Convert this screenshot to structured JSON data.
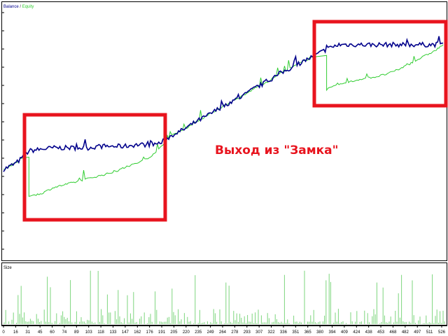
{
  "legend": {
    "balance": "Balance",
    "separator": " / ",
    "equity": "Equity"
  },
  "size_panel": {
    "label": "Size"
  },
  "annotation": {
    "text": "Выход из \"Замка\""
  },
  "colors": {
    "balance": "#00008b",
    "equity": "#32cd32",
    "highlight": "#e8141e",
    "frame": "#000000",
    "grid": "#c0c0c0"
  },
  "chart_data": [
    {
      "type": "line",
      "title": "",
      "legend_placement": "top-left",
      "grid": true,
      "x": [
        0,
        15,
        24,
        31,
        45,
        60,
        74,
        89,
        103,
        118,
        133,
        147,
        162,
        176,
        191,
        205,
        220,
        235,
        249,
        264,
        278,
        293,
        307,
        322,
        336,
        351,
        365,
        380,
        394,
        409,
        424,
        438,
        453,
        468,
        482,
        497,
        511,
        526,
        536
      ],
      "series": [
        {
          "name": "Balance",
          "values": [
            0,
            4,
            8,
            12,
            13,
            14,
            14,
            14,
            14,
            15,
            15,
            15,
            16,
            16,
            17,
            22,
            26,
            31,
            35,
            40,
            44,
            48,
            53,
            57,
            62,
            66,
            70,
            74,
            78,
            81,
            81,
            81,
            81,
            81,
            81,
            81,
            81,
            81,
            82
          ]
        },
        {
          "name": "Equity",
          "values": [
            0,
            4,
            8,
            -17,
            -16,
            -12,
            -10,
            -8,
            -6,
            -4,
            -2,
            1,
            4,
            7,
            14,
            22,
            26,
            31,
            35,
            40,
            44,
            48,
            53,
            57,
            62,
            66,
            70,
            74,
            52,
            55,
            57,
            59,
            60,
            62,
            65,
            69,
            73,
            77,
            81
          ]
        }
      ]
    },
    {
      "type": "bar",
      "title": "Size",
      "xlabel": "",
      "ylabel": "",
      "x_ticks": [
        "0",
        "16",
        "31",
        "45",
        "60",
        "74",
        "89",
        "103",
        "118",
        "133",
        "147",
        "162",
        "176",
        "191",
        "205",
        "220",
        "235",
        "249",
        "264",
        "278",
        "293",
        "307",
        "322",
        "336",
        "351",
        "365",
        "380",
        "394",
        "409",
        "424",
        "438",
        "453",
        "468",
        "482",
        "497",
        "511",
        "526"
      ]
    }
  ]
}
